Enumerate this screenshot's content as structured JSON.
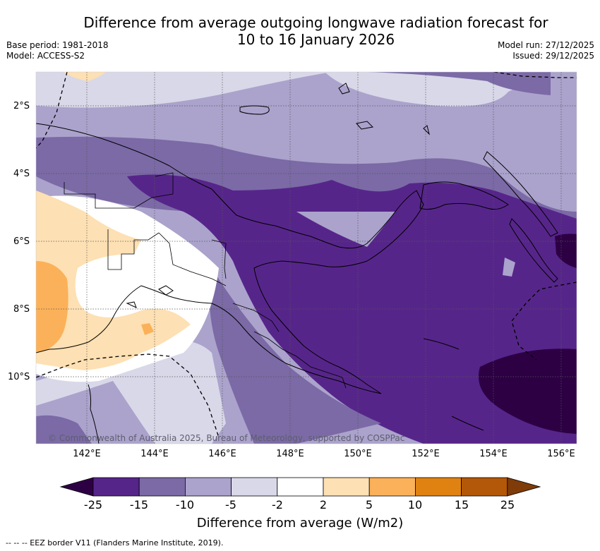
{
  "title": {
    "line1": "Difference from average outgoing longwave radiation forecast for",
    "line2": "10 to 16 January 2026"
  },
  "meta_left": {
    "base_period": "Base period: 1981-2018",
    "model": "Model: ACCESS-S2"
  },
  "meta_right": {
    "model_run": "Model run: 27/12/2025",
    "issued": "Issued: 29/12/2025"
  },
  "map": {
    "lat_labels": [
      "2°S",
      "4°S",
      "6°S",
      "8°S",
      "10°S"
    ],
    "lon_labels": [
      "142°E",
      "144°E",
      "146°E",
      "148°E",
      "150°E",
      "152°E",
      "154°E",
      "156°E"
    ],
    "copyright": "© Commonwealth of Australia 2025, Bureau of Meteorology, supported by COSPPac"
  },
  "colorbar": {
    "title": "Difference from average (W/m2)",
    "ticks": [
      "-25",
      "-15",
      "-10",
      "-5",
      "-2",
      "2",
      "5",
      "10",
      "15",
      "25"
    ],
    "colors": [
      "#56258a",
      "#7b6aa6",
      "#aba3cc",
      "#d8d8e9",
      "#ffffff",
      "#fde0b3",
      "#fbb159",
      "#e08212",
      "#b35808"
    ],
    "under_color": "#2d0044",
    "over_color": "#7f3b08"
  },
  "footer": "-- -- -- EEZ border V11 (Flanders Marine Institute, 2019)."
}
